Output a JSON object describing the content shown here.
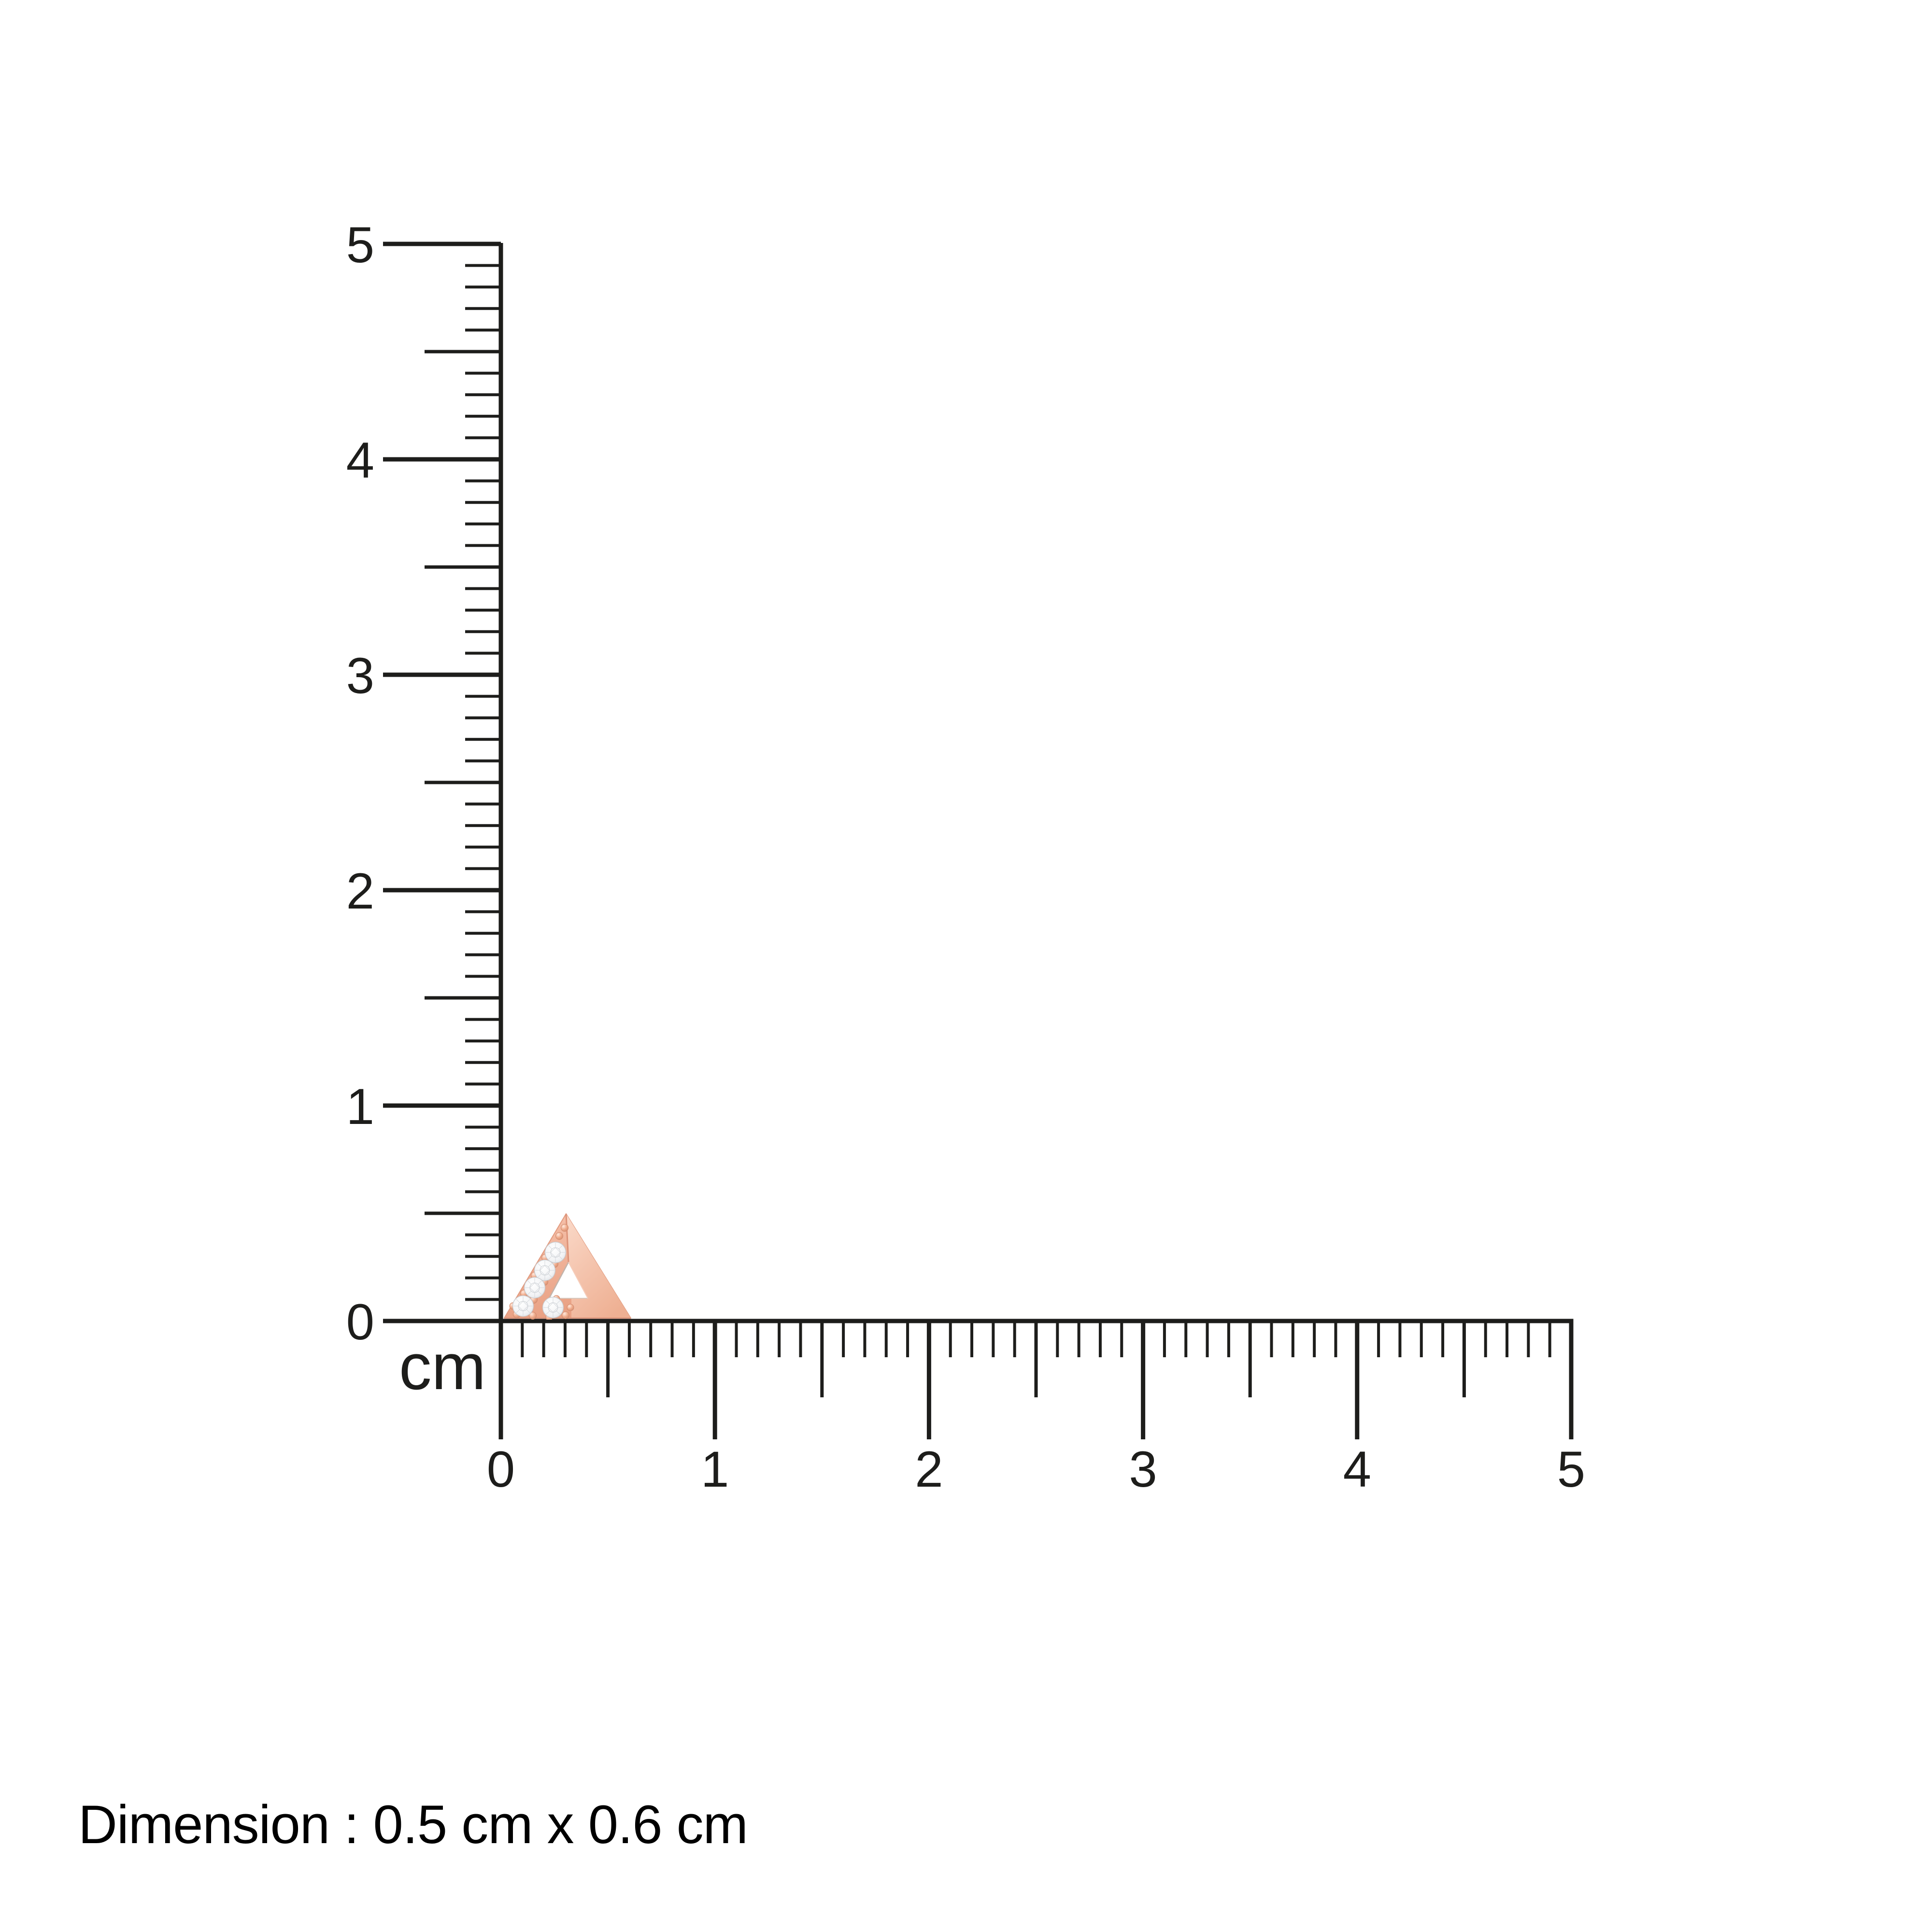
{
  "diagram": {
    "unit_label": "cm",
    "dimension_note": "Dimension : 0.5 cm x 0.6 cm",
    "vertical_ruler": {
      "tick_labels": [
        "0",
        "1",
        "2",
        "3",
        "4",
        "5"
      ]
    },
    "horizontal_ruler": {
      "tick_labels": [
        "0",
        "1",
        "2",
        "3",
        "4",
        "5"
      ]
    }
  },
  "jewel_image": "triangle-diamond-stud",
  "colors": {
    "background": "#ffffff",
    "ink": "#1d1d1b",
    "text": "#000000",
    "rose_gold": "#f0b096",
    "rose_gold_light": "#fad8c7",
    "rose_gold_dark": "#dd9379",
    "diamond_white": "#ffffff",
    "diamond_shade": "#ccd0d5"
  }
}
